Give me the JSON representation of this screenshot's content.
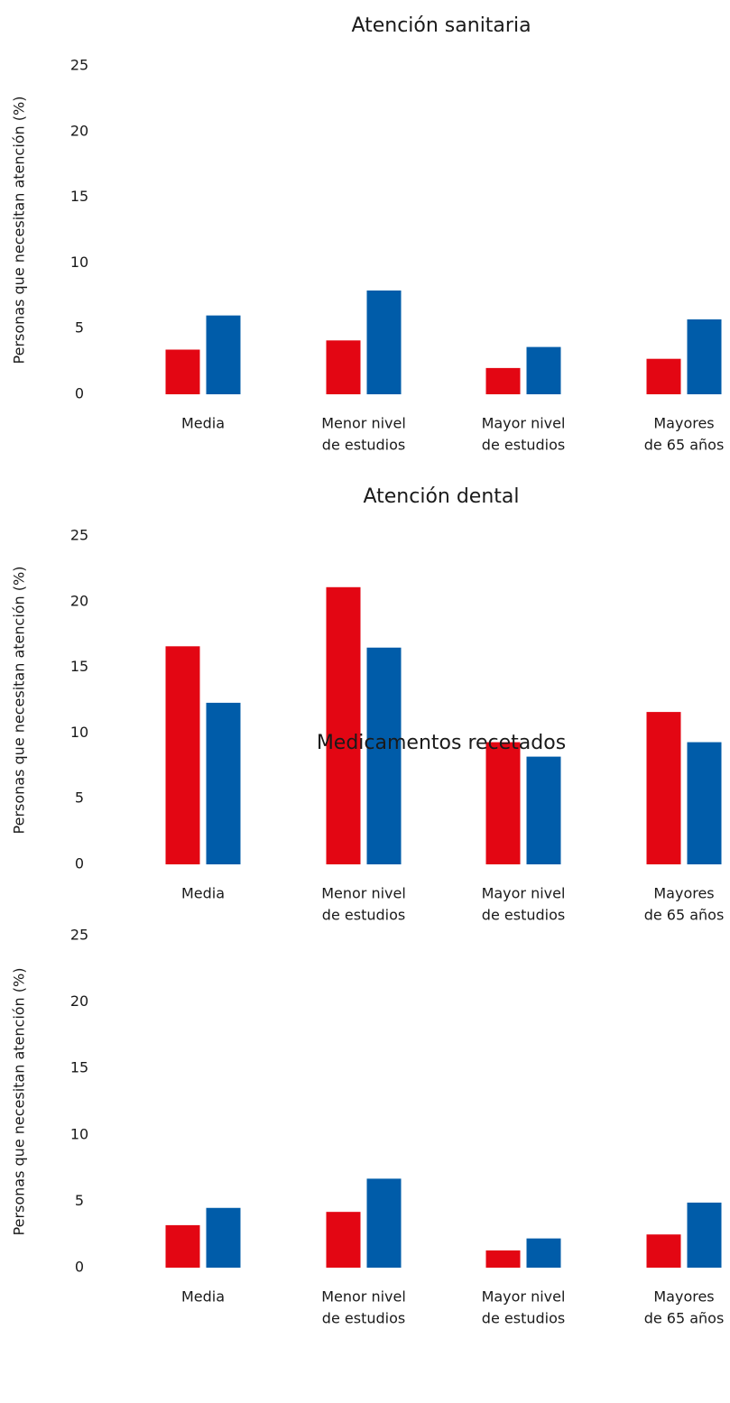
{
  "chart_data": [
    {
      "type": "bar",
      "title": "Atención sanitaria",
      "ylabel": "Personas que necesitan atención (%)",
      "xlabel": "",
      "ylim": [
        0,
        25
      ],
      "yticks": [
        "0",
        "5",
        "10",
        "15",
        "20",
        "25"
      ],
      "grid": false,
      "categories": [
        [
          "Media"
        ],
        [
          "Menor nivel",
          "de estudios"
        ],
        [
          "Mayor nivel",
          "de estudios"
        ],
        [
          "Mayores",
          "de 65 años"
        ]
      ],
      "series": [
        {
          "color": "#e30613",
          "values": [
            3.4,
            4.1,
            2.0,
            2.7
          ]
        },
        {
          "color": "#005ca9",
          "values": [
            6.0,
            7.9,
            3.6,
            5.7
          ]
        }
      ]
    },
    {
      "type": "bar",
      "title": "Atención dental",
      "ylabel": "Personas que necesitan atención (%)",
      "xlabel": "",
      "ylim": [
        0,
        25
      ],
      "yticks": [
        "0",
        "5",
        "10",
        "15",
        "20",
        "25"
      ],
      "grid": false,
      "categories": [
        [
          "Media"
        ],
        [
          "Menor nivel",
          "de estudios"
        ],
        [
          "Mayor nivel",
          "de estudios"
        ],
        [
          "Mayores",
          "de 65 años"
        ]
      ],
      "series": [
        {
          "color": "#e30613",
          "values": [
            16.6,
            21.1,
            9.3,
            11.6
          ]
        },
        {
          "color": "#005ca9",
          "values": [
            12.3,
            16.5,
            8.2,
            9.3
          ]
        }
      ]
    },
    {
      "type": "bar",
      "title": "Medicamentos recetados",
      "ylabel": "Personas que necesitan atención (%)",
      "xlabel": "",
      "ylim": [
        0,
        25
      ],
      "yticks": [
        "0",
        "5",
        "10",
        "15",
        "20",
        "25"
      ],
      "grid": false,
      "categories": [
        [
          "Media"
        ],
        [
          "Menor nivel",
          "de estudios"
        ],
        [
          "Mayor nivel",
          "de estudios"
        ],
        [
          "Mayores",
          "de 65 años"
        ]
      ],
      "series": [
        {
          "color": "#e30613",
          "values": [
            3.2,
            4.2,
            1.3,
            2.5
          ]
        },
        {
          "color": "#005ca9",
          "values": [
            4.5,
            6.7,
            2.2,
            4.9
          ]
        }
      ]
    }
  ]
}
